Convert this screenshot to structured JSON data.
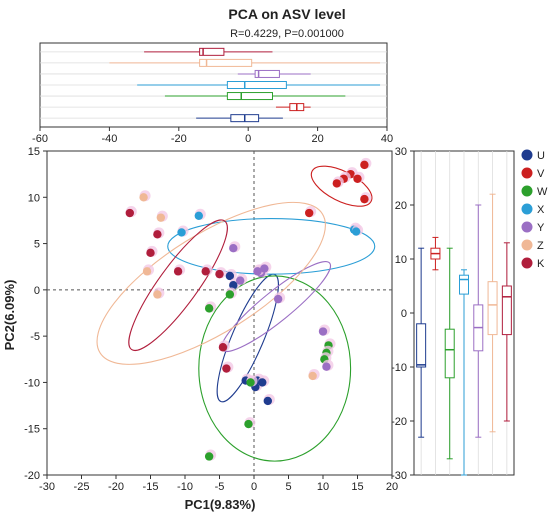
{
  "chart_data": {
    "type": "scatter",
    "title": "PCA on ASV level",
    "subtitle": "R=0.4229, P=0.001000",
    "xlabel": "PC1(9.83%)",
    "ylabel": "PC2(6.09%)",
    "xlim": [
      -30,
      20
    ],
    "ylim": [
      -20,
      15
    ],
    "xticks": [
      -30,
      -25,
      -20,
      -15,
      -10,
      -5,
      0,
      5,
      10,
      15,
      20
    ],
    "yticks": [
      -20,
      -15,
      -10,
      -5,
      0,
      5,
      10,
      15
    ],
    "grid": false,
    "reference_lines": {
      "x": 0,
      "y": 0
    },
    "legend_position": "right",
    "series": [
      {
        "name": "U",
        "color": "#1f3c8f",
        "x": [
          -1.2,
          -0.5,
          0.2,
          0.5,
          1.2,
          0.8,
          -3.5,
          -3.0,
          2.0
        ],
        "y": [
          -9.8,
          -10.0,
          -10.5,
          -9.8,
          -10.0,
          2.0,
          1.5,
          0.5,
          -12.0
        ],
        "box_top": {
          "q1": -5,
          "median": -1,
          "q3": 3,
          "min": -15,
          "max": 10
        },
        "box_right": {
          "q1": -10,
          "median": -9.6,
          "q3": -2,
          "min": -23,
          "max": 12
        }
      },
      {
        "name": "V",
        "color": "#cc2020",
        "x": [
          16.0,
          14.0,
          13.0,
          15.0,
          12.0,
          16.0,
          8.0
        ],
        "y": [
          13.5,
          12.5,
          12.0,
          12.0,
          11.5,
          9.8,
          8.3
        ],
        "box_top": {
          "q1": 12,
          "median": 14,
          "q3": 16,
          "min": 8,
          "max": 18
        },
        "box_right": {
          "q1": 10,
          "median": 11,
          "q3": 12,
          "min": 8,
          "max": 14
        }
      },
      {
        "name": "W",
        "color": "#2ca02c",
        "x": [
          -3.5,
          -6.5,
          -0.8,
          10.8,
          10.5,
          10.2,
          -6.5,
          -0.5
        ],
        "y": [
          -0.5,
          -2.0,
          -14.5,
          -6.0,
          -6.8,
          -7.5,
          -18.0,
          -10.0
        ],
        "box_top": {
          "q1": -6,
          "median": -2,
          "q3": 7,
          "min": -24,
          "max": 28
        },
        "box_right": {
          "q1": -12,
          "median": -6.8,
          "q3": -3,
          "min": -27,
          "max": 12
        }
      },
      {
        "name": "X",
        "color": "#2b9ed6",
        "x": [
          -8.0,
          -10.5,
          14.5,
          14.8
        ],
        "y": [
          8.0,
          6.2,
          6.5,
          6.3
        ],
        "box_top": {
          "q1": -6,
          "median": -1,
          "q3": 11,
          "min": -32,
          "max": 38
        },
        "box_right": {
          "q1": 3.5,
          "median": 6.2,
          "q3": 7,
          "min": -30,
          "max": 8
        }
      },
      {
        "name": "Y",
        "color": "#9b6fc4",
        "x": [
          -3.0,
          1.0,
          0.5,
          1.5,
          -2.0,
          3.5,
          10.0,
          10.5
        ],
        "y": [
          4.5,
          1.8,
          2.0,
          2.3,
          1.0,
          -1.0,
          -4.5,
          -8.3
        ],
        "box_top": {
          "q1": 2,
          "median": 3,
          "q3": 9,
          "min": -3,
          "max": 18
        },
        "box_right": {
          "q1": -7,
          "median": -2.7,
          "q3": 1.5,
          "min": -23,
          "max": 20
        }
      },
      {
        "name": "Z",
        "color": "#f0b896",
        "x": [
          -16.0,
          -13.5,
          -15.5,
          -14.0,
          8.5
        ],
        "y": [
          10.0,
          7.8,
          2.0,
          -0.5,
          -9.3
        ],
        "box_top": {
          "q1": -14,
          "median": -12,
          "q3": 1,
          "min": -40,
          "max": 38
        },
        "box_right": {
          "q1": -4,
          "median": 1.5,
          "q3": 5.8,
          "min": -22,
          "max": 22
        }
      },
      {
        "name": "K",
        "color": "#b01e3c",
        "x": [
          -18.0,
          -14.0,
          -15.0,
          -11.0,
          -7.0,
          -5.0,
          -4.5,
          -4.0
        ],
        "y": [
          8.3,
          6.0,
          4.0,
          2.0,
          2.0,
          1.7,
          -6.2,
          -8.5
        ],
        "box_top": {
          "q1": -14,
          "median": -13,
          "q3": -7,
          "min": -30,
          "max": 7
        },
        "box_right": {
          "q1": -4,
          "median": 3,
          "q3": 5,
          "min": -20,
          "max": 13
        }
      }
    ],
    "ellipses": [
      {
        "series": "U",
        "cx": -0.9,
        "cy": -5.2,
        "rx": 10.0,
        "ry": 1.7,
        "angle_deg": -67
      },
      {
        "series": "V",
        "cx": 12.7,
        "cy": 11.2,
        "rx": 4.8,
        "ry": 1.6,
        "angle_deg": 27
      },
      {
        "series": "W",
        "cx": 3.0,
        "cy": -8.5,
        "rx": 11.0,
        "ry": 10.0,
        "angle_deg": 0
      },
      {
        "series": "X",
        "cx": 2.5,
        "cy": 4.7,
        "rx": 15.0,
        "ry": 3.0,
        "angle_deg": 0
      },
      {
        "series": "Y",
        "cx": 3.2,
        "cy": -1.8,
        "rx": 10.0,
        "ry": 1.6,
        "angle_deg": -39
      },
      {
        "series": "Z",
        "cx": -6.2,
        "cy": 0.7,
        "rx": 19.0,
        "ry": 5.3,
        "angle_deg": -32
      },
      {
        "series": "K",
        "cx": -11.0,
        "cy": 0.5,
        "rx": 11.5,
        "ry": 2.1,
        "angle_deg": -54
      }
    ],
    "top_boxplot": {
      "xlim": [
        -60,
        40
      ],
      "xticks": [
        -60,
        -40,
        -20,
        0,
        20,
        40
      ]
    },
    "right_boxplot": {
      "ylim": [
        -30,
        30
      ],
      "yticks": [
        -30,
        -20,
        -10,
        0,
        10,
        20,
        30
      ]
    }
  }
}
